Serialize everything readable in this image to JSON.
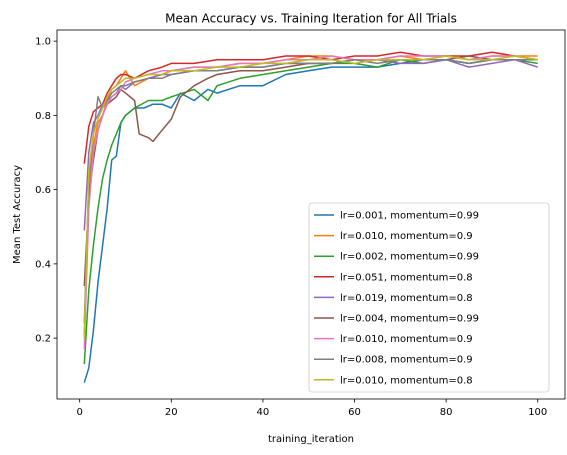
{
  "chart_data": {
    "type": "line",
    "title": "Mean Accuracy vs. Training Iteration for All Trials",
    "xlabel": "training_iteration",
    "ylabel": "Mean Test Accuracy",
    "xlim": [
      -4.95,
      105.95
    ],
    "ylim": [
      0.036,
      1.03
    ],
    "xticks": [
      0,
      20,
      40,
      60,
      80,
      100
    ],
    "yticks": [
      0.2,
      0.4,
      0.6,
      0.8,
      1.0
    ],
    "xtick_labels": [
      "0",
      "20",
      "40",
      "60",
      "80",
      "100"
    ],
    "ytick_labels": [
      "0.2",
      "0.4",
      "0.6",
      "0.8",
      "1.0"
    ],
    "grid": false,
    "legend_position": "lower-right",
    "series": [
      {
        "name": "lr=0.001, momentum=0.99",
        "color": "#1f77b4",
        "points": [
          [
            1,
            0.08
          ],
          [
            2,
            0.12
          ],
          [
            3,
            0.22
          ],
          [
            4,
            0.35
          ],
          [
            5,
            0.45
          ],
          [
            6,
            0.55
          ],
          [
            7,
            0.68
          ],
          [
            8,
            0.69
          ],
          [
            9,
            0.78
          ],
          [
            10,
            0.8
          ],
          [
            12,
            0.82
          ],
          [
            14,
            0.82
          ],
          [
            16,
            0.83
          ],
          [
            18,
            0.83
          ],
          [
            20,
            0.82
          ],
          [
            22,
            0.86
          ],
          [
            25,
            0.84
          ],
          [
            28,
            0.87
          ],
          [
            30,
            0.86
          ],
          [
            35,
            0.88
          ],
          [
            40,
            0.88
          ],
          [
            45,
            0.91
          ],
          [
            50,
            0.92
          ],
          [
            55,
            0.93
          ],
          [
            60,
            0.93
          ],
          [
            65,
            0.93
          ],
          [
            70,
            0.94
          ],
          [
            75,
            0.95
          ],
          [
            80,
            0.95
          ],
          [
            85,
            0.94
          ],
          [
            90,
            0.95
          ],
          [
            95,
            0.95
          ],
          [
            100,
            0.95
          ]
        ]
      },
      {
        "name": "lr=0.010, momentum=0.9",
        "color": "#ff7f0e",
        "points": [
          [
            1,
            0.21
          ],
          [
            2,
            0.58
          ],
          [
            3,
            0.72
          ],
          [
            4,
            0.78
          ],
          [
            5,
            0.8
          ],
          [
            6,
            0.84
          ],
          [
            7,
            0.87
          ],
          [
            8,
            0.88
          ],
          [
            9,
            0.9
          ],
          [
            10,
            0.92
          ],
          [
            12,
            0.88
          ],
          [
            15,
            0.9
          ],
          [
            18,
            0.91
          ],
          [
            20,
            0.92
          ],
          [
            25,
            0.93
          ],
          [
            30,
            0.93
          ],
          [
            35,
            0.94
          ],
          [
            40,
            0.94
          ],
          [
            45,
            0.95
          ],
          [
            50,
            0.96
          ],
          [
            55,
            0.96
          ],
          [
            60,
            0.95
          ],
          [
            65,
            0.95
          ],
          [
            70,
            0.96
          ],
          [
            75,
            0.95
          ],
          [
            80,
            0.96
          ],
          [
            85,
            0.95
          ],
          [
            90,
            0.96
          ],
          [
            95,
            0.96
          ],
          [
            100,
            0.96
          ]
        ]
      },
      {
        "name": "lr=0.002, momentum=0.99",
        "color": "#2ca02c",
        "points": [
          [
            1,
            0.13
          ],
          [
            2,
            0.33
          ],
          [
            3,
            0.45
          ],
          [
            4,
            0.55
          ],
          [
            5,
            0.63
          ],
          [
            6,
            0.68
          ],
          [
            7,
            0.72
          ],
          [
            8,
            0.75
          ],
          [
            9,
            0.78
          ],
          [
            10,
            0.8
          ],
          [
            12,
            0.82
          ],
          [
            15,
            0.84
          ],
          [
            18,
            0.84
          ],
          [
            20,
            0.85
          ],
          [
            25,
            0.87
          ],
          [
            28,
            0.84
          ],
          [
            30,
            0.88
          ],
          [
            35,
            0.9
          ],
          [
            40,
            0.91
          ],
          [
            45,
            0.92
          ],
          [
            50,
            0.93
          ],
          [
            55,
            0.94
          ],
          [
            60,
            0.94
          ],
          [
            65,
            0.93
          ],
          [
            70,
            0.95
          ],
          [
            75,
            0.94
          ],
          [
            80,
            0.95
          ],
          [
            85,
            0.94
          ],
          [
            90,
            0.95
          ],
          [
            95,
            0.95
          ],
          [
            100,
            0.94
          ]
        ]
      },
      {
        "name": "lr=0.051, momentum=0.8",
        "color": "#d62728",
        "points": [
          [
            1,
            0.67
          ],
          [
            2,
            0.77
          ],
          [
            3,
            0.81
          ],
          [
            4,
            0.82
          ],
          [
            5,
            0.83
          ],
          [
            6,
            0.86
          ],
          [
            7,
            0.88
          ],
          [
            8,
            0.9
          ],
          [
            9,
            0.91
          ],
          [
            10,
            0.91
          ],
          [
            12,
            0.9
          ],
          [
            15,
            0.92
          ],
          [
            18,
            0.93
          ],
          [
            20,
            0.94
          ],
          [
            25,
            0.94
          ],
          [
            30,
            0.95
          ],
          [
            35,
            0.95
          ],
          [
            40,
            0.95
          ],
          [
            45,
            0.96
          ],
          [
            50,
            0.96
          ],
          [
            55,
            0.95
          ],
          [
            60,
            0.96
          ],
          [
            65,
            0.96
          ],
          [
            70,
            0.97
          ],
          [
            75,
            0.96
          ],
          [
            80,
            0.96
          ],
          [
            85,
            0.96
          ],
          [
            90,
            0.97
          ],
          [
            95,
            0.96
          ],
          [
            100,
            0.95
          ]
        ]
      },
      {
        "name": "lr=0.019, momentum=0.8",
        "color": "#9467bd",
        "points": [
          [
            1,
            0.49
          ],
          [
            2,
            0.7
          ],
          [
            3,
            0.78
          ],
          [
            4,
            0.8
          ],
          [
            5,
            0.83
          ],
          [
            6,
            0.84
          ],
          [
            7,
            0.85
          ],
          [
            8,
            0.86
          ],
          [
            9,
            0.88
          ],
          [
            10,
            0.87
          ],
          [
            12,
            0.89
          ],
          [
            15,
            0.9
          ],
          [
            18,
            0.91
          ],
          [
            20,
            0.91
          ],
          [
            25,
            0.92
          ],
          [
            30,
            0.92
          ],
          [
            35,
            0.93
          ],
          [
            40,
            0.93
          ],
          [
            45,
            0.94
          ],
          [
            50,
            0.94
          ],
          [
            55,
            0.94
          ],
          [
            60,
            0.95
          ],
          [
            65,
            0.95
          ],
          [
            70,
            0.94
          ],
          [
            75,
            0.94
          ],
          [
            80,
            0.95
          ],
          [
            85,
            0.93
          ],
          [
            90,
            0.94
          ],
          [
            95,
            0.95
          ],
          [
            100,
            0.93
          ]
        ]
      },
      {
        "name": "lr=0.004, momentum=0.99",
        "color": "#8c564b",
        "points": [
          [
            1,
            0.34
          ],
          [
            2,
            0.58
          ],
          [
            3,
            0.68
          ],
          [
            4,
            0.76
          ],
          [
            5,
            0.8
          ],
          [
            6,
            0.83
          ],
          [
            7,
            0.84
          ],
          [
            8,
            0.85
          ],
          [
            9,
            0.87
          ],
          [
            10,
            0.86
          ],
          [
            12,
            0.84
          ],
          [
            13,
            0.75
          ],
          [
            15,
            0.74
          ],
          [
            16,
            0.73
          ],
          [
            18,
            0.76
          ],
          [
            20,
            0.79
          ],
          [
            22,
            0.85
          ],
          [
            25,
            0.88
          ],
          [
            28,
            0.9
          ],
          [
            30,
            0.91
          ],
          [
            35,
            0.92
          ],
          [
            40,
            0.92
          ],
          [
            45,
            0.93
          ],
          [
            50,
            0.94
          ],
          [
            55,
            0.94
          ],
          [
            60,
            0.95
          ],
          [
            65,
            0.95
          ],
          [
            70,
            0.95
          ],
          [
            75,
            0.95
          ],
          [
            80,
            0.95
          ],
          [
            85,
            0.96
          ],
          [
            90,
            0.95
          ],
          [
            95,
            0.95
          ],
          [
            100,
            0.95
          ]
        ]
      },
      {
        "name": "lr=0.010, momentum=0.9",
        "color": "#e377c2",
        "points": [
          [
            1,
            0.17
          ],
          [
            2,
            0.55
          ],
          [
            3,
            0.7
          ],
          [
            4,
            0.76
          ],
          [
            5,
            0.8
          ],
          [
            6,
            0.83
          ],
          [
            7,
            0.85
          ],
          [
            8,
            0.86
          ],
          [
            9,
            0.87
          ],
          [
            10,
            0.89
          ],
          [
            12,
            0.9
          ],
          [
            15,
            0.91
          ],
          [
            18,
            0.92
          ],
          [
            20,
            0.92
          ],
          [
            25,
            0.93
          ],
          [
            30,
            0.93
          ],
          [
            35,
            0.94
          ],
          [
            40,
            0.94
          ],
          [
            45,
            0.95
          ],
          [
            50,
            0.95
          ],
          [
            55,
            0.96
          ],
          [
            60,
            0.95
          ],
          [
            65,
            0.95
          ],
          [
            70,
            0.96
          ],
          [
            75,
            0.96
          ],
          [
            80,
            0.96
          ],
          [
            85,
            0.95
          ],
          [
            90,
            0.96
          ],
          [
            95,
            0.96
          ],
          [
            100,
            0.95
          ]
        ]
      },
      {
        "name": "lr=0.008, momentum=0.9",
        "color": "#7f7f7f",
        "points": [
          [
            1,
            0.24
          ],
          [
            2,
            0.62
          ],
          [
            3,
            0.75
          ],
          [
            4,
            0.85
          ],
          [
            5,
            0.82
          ],
          [
            6,
            0.84
          ],
          [
            7,
            0.86
          ],
          [
            8,
            0.87
          ],
          [
            9,
            0.88
          ],
          [
            10,
            0.88
          ],
          [
            12,
            0.89
          ],
          [
            15,
            0.9
          ],
          [
            18,
            0.9
          ],
          [
            20,
            0.91
          ],
          [
            25,
            0.92
          ],
          [
            30,
            0.92
          ],
          [
            35,
            0.93
          ],
          [
            40,
            0.93
          ],
          [
            45,
            0.94
          ],
          [
            50,
            0.94
          ],
          [
            55,
            0.94
          ],
          [
            60,
            0.95
          ],
          [
            65,
            0.94
          ],
          [
            70,
            0.95
          ],
          [
            75,
            0.95
          ],
          [
            80,
            0.95
          ],
          [
            85,
            0.94
          ],
          [
            90,
            0.95
          ],
          [
            95,
            0.95
          ],
          [
            100,
            0.95
          ]
        ]
      },
      {
        "name": "lr=0.010, momentum=0.8",
        "color": "#bcbd22",
        "points": [
          [
            1,
            0.2
          ],
          [
            2,
            0.65
          ],
          [
            3,
            0.75
          ],
          [
            4,
            0.79
          ],
          [
            5,
            0.82
          ],
          [
            6,
            0.85
          ],
          [
            7,
            0.87
          ],
          [
            8,
            0.88
          ],
          [
            9,
            0.89
          ],
          [
            10,
            0.9
          ],
          [
            12,
            0.9
          ],
          [
            15,
            0.91
          ],
          [
            18,
            0.91
          ],
          [
            20,
            0.92
          ],
          [
            25,
            0.92
          ],
          [
            30,
            0.93
          ],
          [
            35,
            0.93
          ],
          [
            40,
            0.94
          ],
          [
            45,
            0.94
          ],
          [
            50,
            0.95
          ],
          [
            55,
            0.95
          ],
          [
            60,
            0.94
          ],
          [
            65,
            0.95
          ],
          [
            70,
            0.95
          ],
          [
            75,
            0.95
          ],
          [
            80,
            0.96
          ],
          [
            85,
            0.95
          ],
          [
            90,
            0.95
          ],
          [
            95,
            0.96
          ],
          [
            100,
            0.95
          ]
        ]
      }
    ]
  }
}
